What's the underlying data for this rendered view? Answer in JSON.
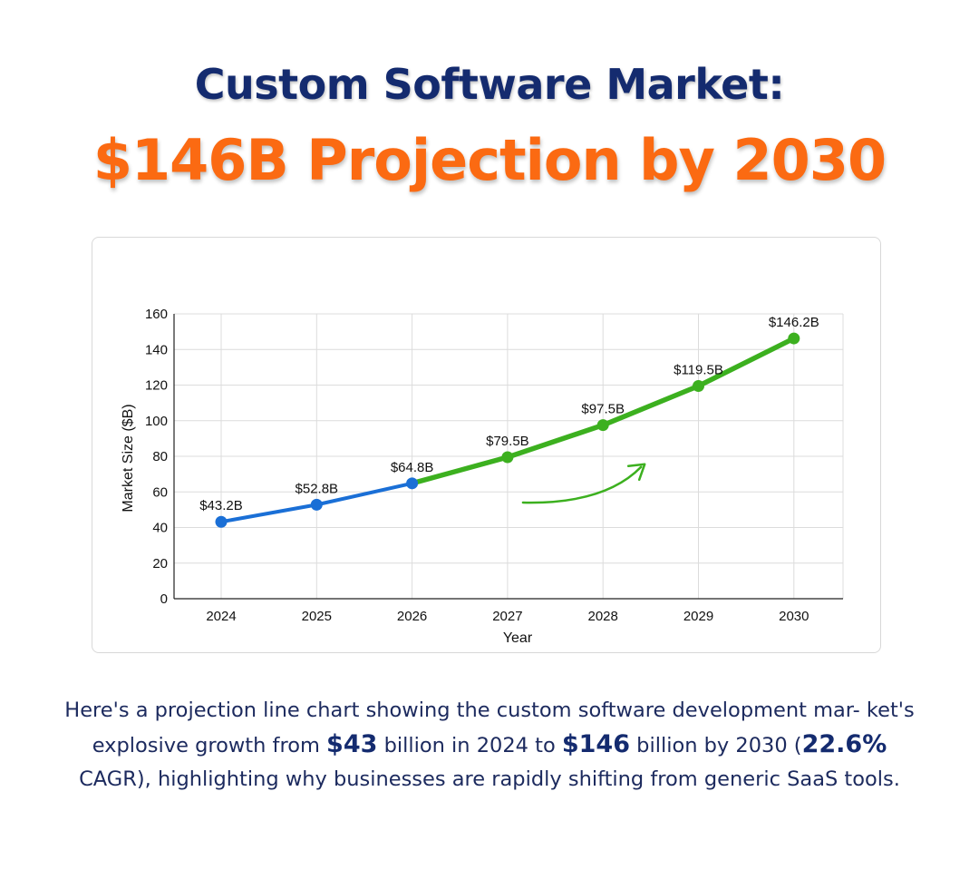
{
  "header": {
    "title_line1": "Custom Software Market:",
    "title_line2": "$146B Projection by 2030"
  },
  "chart_data": {
    "type": "line",
    "title": "",
    "xlabel": "Year",
    "ylabel": "Market Size ($B)",
    "ylim": [
      0,
      160
    ],
    "yticks": [
      0,
      20,
      40,
      60,
      80,
      100,
      120,
      140,
      160
    ],
    "grid": true,
    "x": [
      "2024",
      "2025",
      "2026",
      "2027",
      "2028",
      "2029",
      "2030"
    ],
    "series": [
      {
        "color": "#1a6fd6",
        "x": [
          "2024",
          "2025",
          "2026"
        ],
        "values": [
          43.2,
          52.8,
          64.8
        ]
      },
      {
        "color": "#3cb01f",
        "x": [
          "2026",
          "2027",
          "2028",
          "2029",
          "2030"
        ],
        "values": [
          64.8,
          79.5,
          97.5,
          119.5,
          146.2
        ]
      }
    ],
    "data_labels": [
      "$43.2B",
      "$52.8B",
      "$64.8B",
      "$79.5B",
      "$97.5B",
      "$119.5B",
      "$146.2B"
    ],
    "annotations": [
      {
        "type": "arrow",
        "color": "#3cb01f",
        "icon": "growth-arrow-icon"
      }
    ]
  },
  "caption": {
    "part1": "Here's a projection line chart showing the custom software development mar- ket's explosive growth from ",
    "value1": "$43",
    "part2": " billion in 2024 to ",
    "value2": "$146",
    "part3": " billion by 2030 (",
    "value3": "22.6%",
    "part4": " CAGR), highlighting why businesses are rapidly shifting from generic SaaS tools."
  }
}
